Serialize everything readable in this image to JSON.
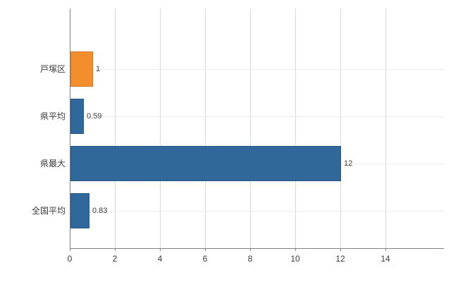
{
  "chart_data": {
    "type": "bar",
    "orientation": "horizontal",
    "title": "",
    "xlabel": "",
    "ylabel": "",
    "categories": [
      "戸塚区",
      "県平均",
      "県最大",
      "全国平均"
    ],
    "values": [
      1,
      0.59,
      12,
      0.83
    ],
    "value_labels": [
      "1",
      "0.59",
      "12",
      "0.83"
    ],
    "bar_colors": [
      "#f28e2c",
      "#31689c",
      "#31689c",
      "#31689c"
    ],
    "xlim": [
      0,
      14
    ],
    "x_ticks": [
      0,
      2,
      4,
      6,
      8,
      10,
      12,
      14
    ],
    "x_tick_labels": [
      "0",
      "2",
      "4",
      "6",
      "8",
      "10",
      "12",
      "14"
    ],
    "legend": "none",
    "grid": {
      "vertical": true,
      "vertical_color": "#d9d9d9",
      "horizontal": true,
      "horizontal_color": "#ededed"
    },
    "axis_color": "#808080",
    "background": "#ffffff"
  }
}
